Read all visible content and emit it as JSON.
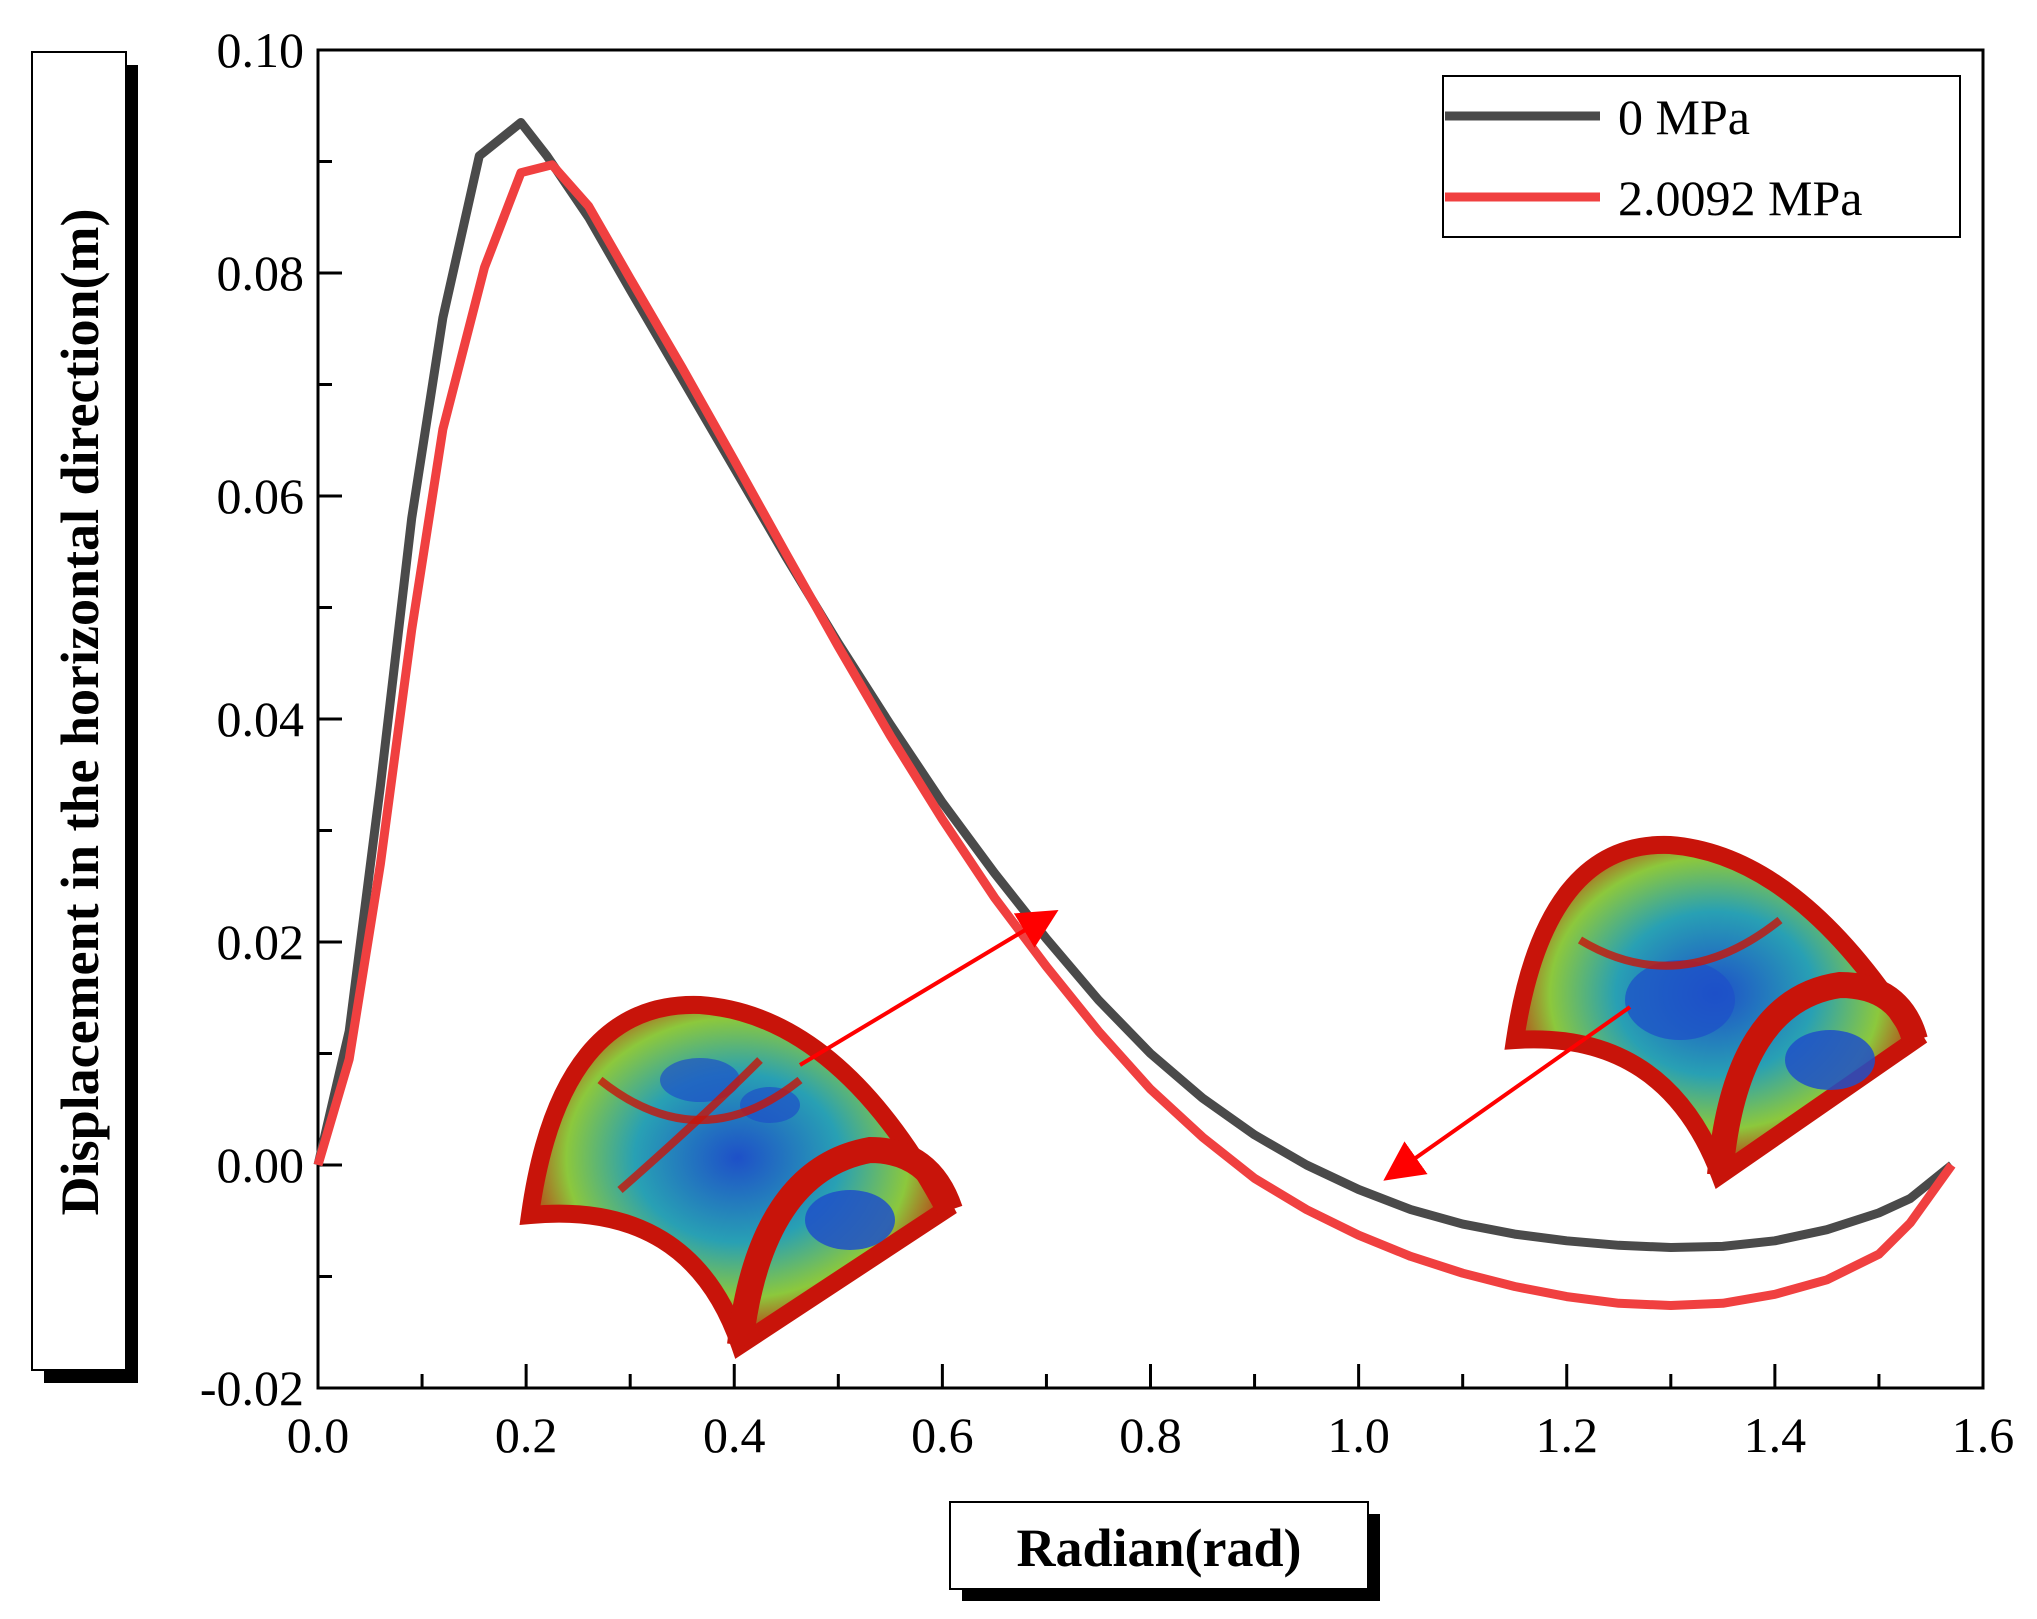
{
  "chart_data": {
    "type": "line",
    "title": "",
    "xlabel": "Radian(rad)",
    "ylabel": "Displacement in the horizontal direction(m)",
    "xlim": [
      0.0,
      1.6
    ],
    "ylim": [
      -0.02,
      0.1
    ],
    "x_ticks": [
      "0.0",
      "0.2",
      "0.4",
      "0.6",
      "0.8",
      "1.0",
      "1.2",
      "1.4",
      "1.6"
    ],
    "y_ticks": [
      "-0.02",
      "0.00",
      "0.02",
      "0.04",
      "0.06",
      "0.08",
      "0.10"
    ],
    "legend_position": "top-right",
    "grid": false,
    "series": [
      {
        "name": "0 MPa",
        "color": "#4a4a4a",
        "points": [
          [
            0.0,
            0.0
          ],
          [
            0.03,
            0.012
          ],
          [
            0.06,
            0.034
          ],
          [
            0.09,
            0.058
          ],
          [
            0.12,
            0.076
          ],
          [
            0.155,
            0.0905
          ],
          [
            0.195,
            0.0935
          ],
          [
            0.22,
            0.0905
          ],
          [
            0.26,
            0.085
          ],
          [
            0.3,
            0.0785
          ],
          [
            0.35,
            0.0705
          ],
          [
            0.4,
            0.0625
          ],
          [
            0.45,
            0.0545
          ],
          [
            0.5,
            0.0468
          ],
          [
            0.55,
            0.0395
          ],
          [
            0.6,
            0.0325
          ],
          [
            0.65,
            0.0262
          ],
          [
            0.7,
            0.0203
          ],
          [
            0.75,
            0.0148
          ],
          [
            0.8,
            0.01
          ],
          [
            0.85,
            0.006
          ],
          [
            0.9,
            0.0027
          ],
          [
            0.95,
            0.0
          ],
          [
            1.0,
            -0.0022
          ],
          [
            1.05,
            -0.004
          ],
          [
            1.1,
            -0.0053
          ],
          [
            1.15,
            -0.0062
          ],
          [
            1.2,
            -0.0068
          ],
          [
            1.25,
            -0.0072
          ],
          [
            1.3,
            -0.0074
          ],
          [
            1.35,
            -0.0073
          ],
          [
            1.4,
            -0.0068
          ],
          [
            1.45,
            -0.0058
          ],
          [
            1.5,
            -0.0043
          ],
          [
            1.53,
            -0.003
          ],
          [
            1.57,
            0.0
          ]
        ]
      },
      {
        "name": "2.0092 MPa",
        "color": "#f04040",
        "points": [
          [
            0.0,
            0.0
          ],
          [
            0.03,
            0.0095
          ],
          [
            0.06,
            0.027
          ],
          [
            0.09,
            0.048
          ],
          [
            0.12,
            0.066
          ],
          [
            0.16,
            0.0805
          ],
          [
            0.195,
            0.089
          ],
          [
            0.225,
            0.0897
          ],
          [
            0.26,
            0.086
          ],
          [
            0.3,
            0.0795
          ],
          [
            0.35,
            0.0715
          ],
          [
            0.4,
            0.0632
          ],
          [
            0.45,
            0.0548
          ],
          [
            0.5,
            0.0465
          ],
          [
            0.55,
            0.0385
          ],
          [
            0.6,
            0.031
          ],
          [
            0.65,
            0.024
          ],
          [
            0.7,
            0.0178
          ],
          [
            0.75,
            0.012
          ],
          [
            0.8,
            0.0068
          ],
          [
            0.85,
            0.0025
          ],
          [
            0.9,
            -0.0012
          ],
          [
            0.95,
            -0.004
          ],
          [
            1.0,
            -0.0063
          ],
          [
            1.05,
            -0.0082
          ],
          [
            1.1,
            -0.0097
          ],
          [
            1.15,
            -0.0109
          ],
          [
            1.2,
            -0.0118
          ],
          [
            1.25,
            -0.0124
          ],
          [
            1.3,
            -0.0126
          ],
          [
            1.35,
            -0.0124
          ],
          [
            1.4,
            -0.0116
          ],
          [
            1.45,
            -0.0103
          ],
          [
            1.5,
            -0.008
          ],
          [
            1.53,
            -0.0052
          ],
          [
            1.57,
            0.0
          ]
        ]
      }
    ],
    "annotations": [
      {
        "label": "stress contour inset at 0.7 rad",
        "points_to": [
          0.705,
          0.0225
        ]
      },
      {
        "label": "stress contour inset at 1.0 rad",
        "points_to": [
          1.03,
          -0.001
        ]
      }
    ]
  },
  "colors": {
    "axis": "#000000",
    "arrow": "#ff0000",
    "inset_red": "#c8140a",
    "inset_blue": "#1e50c8",
    "inset_cyan": "#28a0b4",
    "inset_green": "#8cc83c"
  }
}
